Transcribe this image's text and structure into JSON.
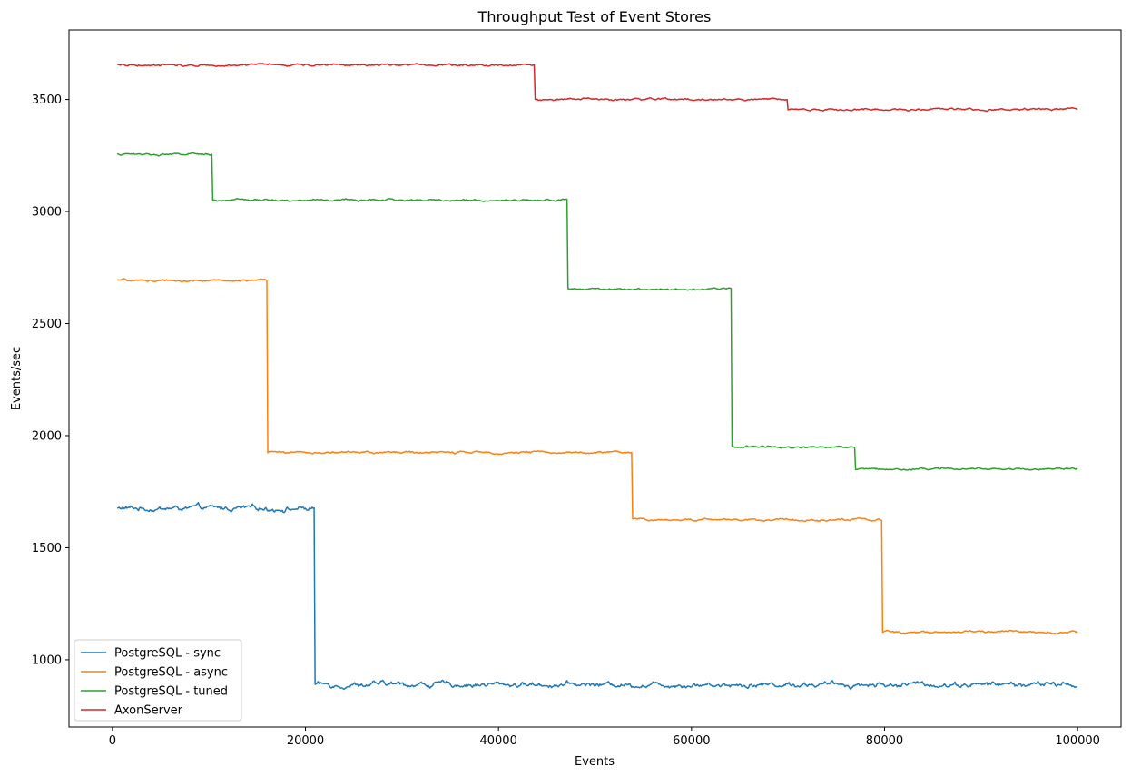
{
  "chart_data": {
    "type": "line",
    "title": "Throughput Test of Event Stores",
    "xlabel": "Events",
    "ylabel": "Events/sec",
    "xlim": [
      -4500,
      104500
    ],
    "ylim": [
      700,
      3810
    ],
    "xticks": [
      0,
      20000,
      40000,
      60000,
      80000,
      100000
    ],
    "xtick_labels": [
      "0",
      "20000",
      "40000",
      "60000",
      "80000",
      "100000"
    ],
    "yticks": [
      1000,
      1500,
      2000,
      2500,
      3000,
      3500
    ],
    "ytick_labels": [
      "1000",
      "1500",
      "2000",
      "2500",
      "3000",
      "3500"
    ],
    "grid": false,
    "legend_position": "lower-left",
    "series": [
      {
        "name": "PostgreSQL - sync",
        "color": "#1f77b4",
        "x_start": 500,
        "x_end": 100000,
        "noise_amplitude": 22,
        "segments": [
          {
            "from": 500,
            "to": 21000,
            "value": 1675
          },
          {
            "from": 21000,
            "to": 100000,
            "value": 890
          }
        ]
      },
      {
        "name": "PostgreSQL - async",
        "color": "#ff7f0e",
        "x_start": 500,
        "x_end": 100000,
        "noise_amplitude": 9,
        "segments": [
          {
            "from": 500,
            "to": 16100,
            "value": 2692
          },
          {
            "from": 16100,
            "to": 53900,
            "value": 1925
          },
          {
            "from": 53900,
            "to": 79800,
            "value": 1625
          },
          {
            "from": 79800,
            "to": 100000,
            "value": 1125
          }
        ]
      },
      {
        "name": "PostgreSQL - tuned",
        "color": "#2ca02c",
        "x_start": 500,
        "x_end": 100000,
        "noise_amplitude": 8,
        "segments": [
          {
            "from": 500,
            "to": 10400,
            "value": 3255
          },
          {
            "from": 10400,
            "to": 47200,
            "value": 3050
          },
          {
            "from": 47200,
            "to": 64200,
            "value": 2655
          },
          {
            "from": 64200,
            "to": 77000,
            "value": 1950
          },
          {
            "from": 77000,
            "to": 100000,
            "value": 1852
          }
        ]
      },
      {
        "name": "AxonServer",
        "color": "#d62728",
        "x_start": 500,
        "x_end": 100000,
        "noise_amplitude": 9,
        "segments": [
          {
            "from": 500,
            "to": 43800,
            "value": 3655
          },
          {
            "from": 43800,
            "to": 70000,
            "value": 3500
          },
          {
            "from": 70000,
            "to": 100000,
            "value": 3455
          }
        ]
      }
    ]
  }
}
